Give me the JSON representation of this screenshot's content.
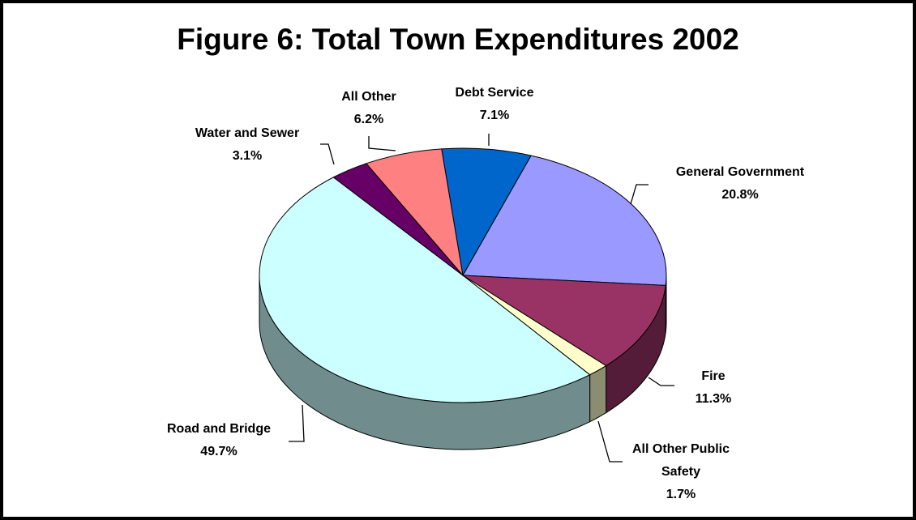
{
  "chart_data": {
    "type": "pie",
    "title": "Figure 6: Total Town Expenditures 2002",
    "categories": [
      "Debt Service",
      "General Government",
      "Fire",
      "All Other Public Safety",
      "Road and Bridge",
      "Water and Sewer",
      "All Other"
    ],
    "values": [
      7.1,
      20.8,
      11.3,
      1.7,
      49.7,
      3.1,
      6.2
    ],
    "value_labels": [
      "7.1%",
      "20.8%",
      "11.3%",
      "1.7%",
      "49.7%",
      "3.1%",
      "6.2%"
    ],
    "colors": [
      "#0066cc",
      "#9999ff",
      "#993366",
      "#ffffcc",
      "#ccffff",
      "#660066",
      "#ff8080"
    ]
  }
}
